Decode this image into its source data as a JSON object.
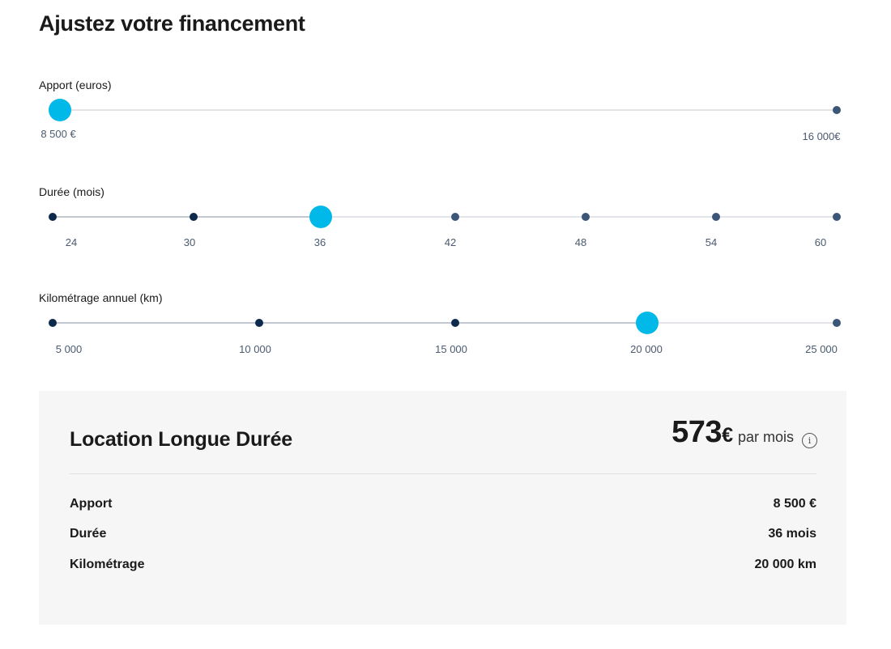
{
  "title": "Ajustez votre financement",
  "sliders": {
    "apport": {
      "label": "Apport (euros)",
      "min_label": "8 500 €",
      "max_label": "16 000€",
      "value_fraction": 0
    },
    "duree": {
      "label": "Durée (mois)",
      "ticks": [
        "24",
        "30",
        "36",
        "42",
        "48",
        "54",
        "60"
      ],
      "selected_index": 2
    },
    "km": {
      "label": "Kilométrage annuel (km)",
      "ticks": [
        "5 000",
        "10 000",
        "15 000",
        "20 000",
        "25 000"
      ],
      "selected_index": 3
    }
  },
  "summary": {
    "title": "Location Longue Durée",
    "price": "573",
    "currency": "€",
    "period": "par mois",
    "info_icon": "info-icon",
    "rows": [
      {
        "label": "Apport",
        "value": "8 500 €"
      },
      {
        "label": "Durée",
        "value": "36 mois"
      },
      {
        "label": "Kilométrage",
        "value": "20 000 km"
      }
    ]
  },
  "colors": {
    "accent": "#00b9e8",
    "dot": "#3b5677",
    "dot_passed": "#0d2a4d",
    "panel": "#f6f6f6"
  }
}
